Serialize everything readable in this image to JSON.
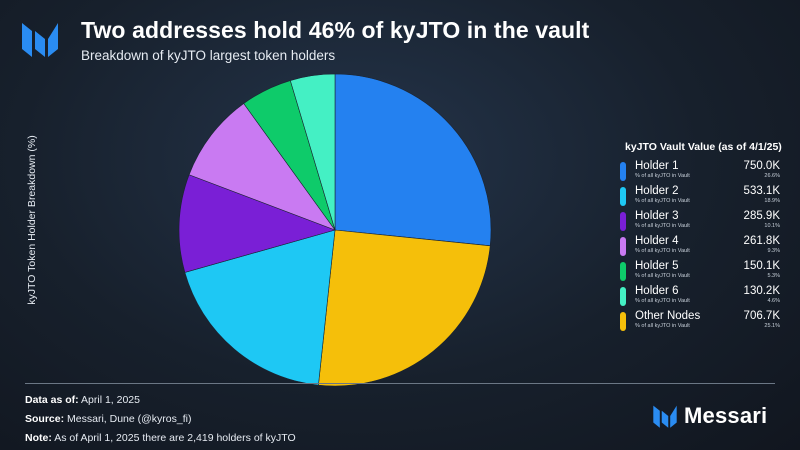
{
  "header": {
    "title": "Two addresses hold 46% of kyJTO in the vault",
    "subtitle": "Breakdown of kyJTO largest token holders"
  },
  "footer": {
    "data_label": "Data as of:",
    "data_value": "April 1, 2025",
    "source_label": "Source:",
    "source_value": "Messari, Dune (@kyros_fi)",
    "note_label": "Note:",
    "note_value": "As of April 1, 2025 there are 2,419 holders of kyJTO"
  },
  "brand": {
    "name": "Messari"
  },
  "chart_data": {
    "type": "pie",
    "ylabel": "kyJTO Token Holder Breakdown (%)",
    "legend_title": "kyJTO Vault Value (as of 4/1/25)",
    "legend_note": "% of all kyJTO in Vault",
    "legend_position": "right",
    "slices": [
      {
        "label": "Holder 1",
        "value_text": "750.0K",
        "value": 750.0,
        "pct_text": "26.6%",
        "color": "#2481f0"
      },
      {
        "label": "Other Nodes",
        "value_text": "706.7K",
        "value": 706.7,
        "pct_text": "25.1%",
        "color": "#f5bf0a"
      },
      {
        "label": "Holder 2",
        "value_text": "533.1K",
        "value": 533.1,
        "pct_text": "18.9%",
        "color": "#1ec8f4"
      },
      {
        "label": "Holder 3",
        "value_text": "285.9K",
        "value": 285.9,
        "pct_text": "10.1%",
        "color": "#7a1fd6"
      },
      {
        "label": "Holder 4",
        "value_text": "261.8K",
        "value": 261.8,
        "pct_text": "9.3%",
        "color": "#c97af2"
      },
      {
        "label": "Holder 5",
        "value_text": "150.1K",
        "value": 150.1,
        "pct_text": "5.3%",
        "color": "#0ecb6a"
      },
      {
        "label": "Holder 6",
        "value_text": "130.2K",
        "value": 130.2,
        "pct_text": "4.6%",
        "color": "#44f0c4"
      }
    ],
    "legend_order": [
      "Holder 1",
      "Holder 2",
      "Holder 3",
      "Holder 4",
      "Holder 5",
      "Holder 6",
      "Other Nodes"
    ]
  }
}
